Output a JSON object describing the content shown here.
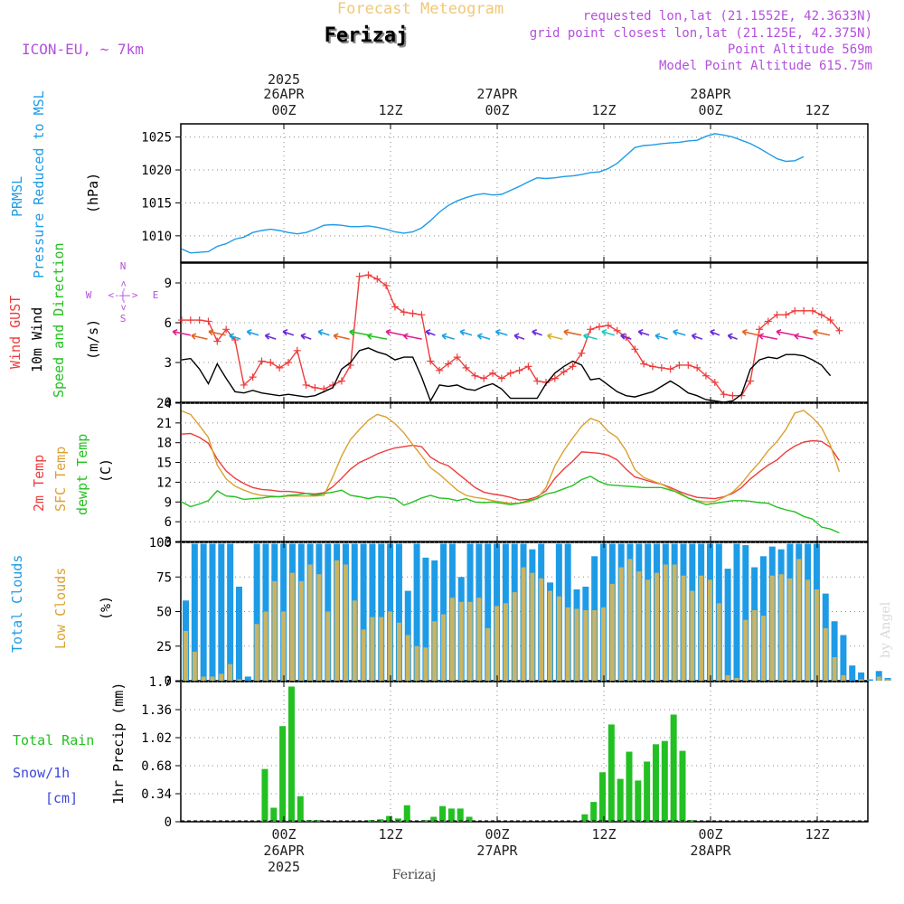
{
  "header": {
    "title": "Forecast Meteogram",
    "location": "Ferizaj",
    "model": "ICON-EU, ~ 7km",
    "requested": "requested lon,lat (21.1552E, 42.3633N)",
    "grid_point": "grid point closest lon,lat (21.125E, 42.375N)",
    "point_altitude": "Point Altitude 569m",
    "model_altitude": "Model Point Altitude 615.75m"
  },
  "time_axis": {
    "year": "2025",
    "hour_labels": [
      "00Z",
      "12Z",
      "00Z",
      "12Z",
      "00Z",
      "12Z"
    ],
    "date_labels": [
      "26APR",
      "27APR",
      "28APR"
    ]
  },
  "footer": {
    "location": "Ferizaj",
    "credit": "by Angel"
  },
  "colors": {
    "blue": "#1e9be6",
    "red": "#ee3c3c",
    "orange": "#dca030",
    "green": "#24c020",
    "purple": "#b450dc",
    "rain": "#22c022",
    "cloud_total": "#1e9be6",
    "cloud_low": "#c8b464"
  },
  "panel_labels": {
    "pressure": {
      "line1": "PRMSL",
      "line2": "Pressure Reduced to MSL",
      "unit": "(hPa)"
    },
    "wind": {
      "gust": "Wind GUST",
      "wind": "10m Wind",
      "speed_dir": "Speed and Direction",
      "unit": "(m/s)",
      "compass_n": "N",
      "compass_s": "S",
      "compass_w": "W",
      "compass_e": "E",
      "compass_ns": "<-|->",
      "compass_we": "<-|->"
    },
    "temp": {
      "t2m": "2m Temp",
      "sfc": "SFC Temp",
      "dewpt": "dewpt Temp",
      "unit": "(C)"
    },
    "clouds": {
      "total": "Total Clouds",
      "low": "Low Clouds",
      "unit": "(%)"
    },
    "precip": {
      "total_rain": "Total  Rain",
      "snow": "Snow/1h",
      "snow_unit": "[cm]",
      "axis": "1hr Precip (mm)"
    }
  },
  "chart_data": [
    {
      "type": "line",
      "title": "PRMSL Pressure Reduced to MSL",
      "ylabel": "hPa",
      "ylim": [
        1006,
        1027
      ],
      "yticks": [
        1010,
        1015,
        1020,
        1025
      ],
      "x_hours_from": "2025-04-25 14Z",
      "x_step_hours": 1,
      "series": [
        {
          "name": "PRMSL",
          "values": [
            1008.0,
            1007.4,
            1007.5,
            1007.6,
            1008.4,
            1008.8,
            1009.5,
            1009.8,
            1010.5,
            1010.8,
            1011.0,
            1010.8,
            1010.5,
            1010.3,
            1010.5,
            1011.0,
            1011.6,
            1011.7,
            1011.6,
            1011.4,
            1011.4,
            1011.5,
            1011.3,
            1011.0,
            1010.6,
            1010.4,
            1010.6,
            1011.2,
            1012.3,
            1013.6,
            1014.6,
            1015.3,
            1015.8,
            1016.2,
            1016.4,
            1016.2,
            1016.3,
            1016.9,
            1017.5,
            1018.2,
            1018.8,
            1018.7,
            1018.8,
            1019.0,
            1019.1,
            1019.3,
            1019.6,
            1019.7,
            1020.2,
            1021.0,
            1022.2,
            1023.4,
            1023.7,
            1023.8,
            1024.0,
            1024.1,
            1024.2,
            1024.4,
            1024.5,
            1025.1,
            1025.5,
            1025.3,
            1025.0,
            1024.5,
            1024.0,
            1023.3,
            1022.5,
            1021.7,
            1021.3,
            1021.4,
            1022.0
          ]
        }
      ]
    },
    {
      "type": "line",
      "title": "Wind GUST / 10m Wind Speed and Direction",
      "ylabel": "m/s",
      "ylim": [
        0,
        10.5
      ],
      "yticks": [
        0,
        3,
        6,
        9
      ],
      "x_hours_from": "2025-04-25 14Z",
      "x_step_hours": 1,
      "series": [
        {
          "name": "Wind GUST",
          "values": [
            6.2,
            6.2,
            6.2,
            6.1,
            4.6,
            5.5,
            4.7,
            1.3,
            1.9,
            3.1,
            3.0,
            2.6,
            3.0,
            3.9,
            1.3,
            1.1,
            1.0,
            1.3,
            1.6,
            2.8,
            9.5,
            9.6,
            9.3,
            8.8,
            7.2,
            6.8,
            6.7,
            6.6,
            3.1,
            2.4,
            2.9,
            3.4,
            2.6,
            2.0,
            1.8,
            2.2,
            1.8,
            2.2,
            2.4,
            2.7,
            1.6,
            1.5,
            1.8,
            2.3,
            2.7,
            3.7,
            5.5,
            5.7,
            5.8,
            5.4,
            4.9,
            4.0,
            2.9,
            2.7,
            2.6,
            2.5,
            2.8,
            2.8,
            2.6,
            2.0,
            1.5,
            0.6,
            0.5,
            0.5,
            1.6,
            5.5,
            6.1,
            6.6,
            6.6,
            6.9,
            6.9,
            6.9,
            6.6,
            6.2,
            5.4
          ]
        },
        {
          "name": "10m Wind",
          "values": [
            3.2,
            3.3,
            2.5,
            1.4,
            2.9,
            1.8,
            0.8,
            0.7,
            0.9,
            0.7,
            0.6,
            0.5,
            0.6,
            0.5,
            0.4,
            0.5,
            0.8,
            1.1,
            2.5,
            3.0,
            3.9,
            4.1,
            3.8,
            3.6,
            3.2,
            3.4,
            3.4,
            1.9,
            0.1,
            1.3,
            1.2,
            1.3,
            1.0,
            0.9,
            1.2,
            1.4,
            1.0,
            0.3,
            0.3,
            0.3,
            0.3,
            1.4,
            2.2,
            2.7,
            3.1,
            2.8,
            1.7,
            1.8,
            1.3,
            0.8,
            0.5,
            0.4,
            0.6,
            0.8,
            1.2,
            1.6,
            1.2,
            0.7,
            0.5,
            0.2,
            0.1,
            0.0,
            0.1,
            0.6,
            2.5,
            3.2,
            3.4,
            3.3,
            3.6,
            3.6,
            3.5,
            3.2,
            2.8,
            2.0
          ]
        }
      ]
    },
    {
      "type": "line",
      "title": "2m Temp / SFC Temp / dewpt Temp",
      "ylabel": "C",
      "ylim": [
        3,
        24
      ],
      "yticks": [
        3,
        6,
        9,
        12,
        15,
        18,
        21,
        24
      ],
      "x_hours_from": "2025-04-25 14Z",
      "x_step_hours": 1,
      "series": [
        {
          "name": "2m Temp",
          "values": [
            19.3,
            19.4,
            18.8,
            17.9,
            15.5,
            13.7,
            12.6,
            11.8,
            11.2,
            10.9,
            10.8,
            10.6,
            10.6,
            10.5,
            10.3,
            10.2,
            10.4,
            11.3,
            12.6,
            14.0,
            15.0,
            15.6,
            16.3,
            16.8,
            17.2,
            17.4,
            17.6,
            17.4,
            15.8,
            15.0,
            14.5,
            13.4,
            12.3,
            11.2,
            10.5,
            10.2,
            10.0,
            9.7,
            9.3,
            9.4,
            9.8,
            10.7,
            12.6,
            14.0,
            15.2,
            16.6,
            16.5,
            16.4,
            16.1,
            15.4,
            14.0,
            12.8,
            12.4,
            12.0,
            11.7,
            11.2,
            10.6,
            10.1,
            9.7,
            9.6,
            9.5,
            9.8,
            10.3,
            11.2,
            12.5,
            13.6,
            14.6,
            15.4,
            16.6,
            17.5,
            18.1,
            18.3,
            18.2,
            17.3,
            15.3
          ]
        },
        {
          "name": "SFC Temp",
          "values": [
            22.8,
            22.3,
            20.6,
            18.8,
            14.6,
            12.5,
            11.4,
            10.8,
            10.3,
            10.0,
            9.9,
            9.8,
            9.9,
            9.9,
            9.9,
            9.9,
            10.0,
            12.8,
            16.0,
            18.5,
            20.0,
            21.4,
            22.3,
            21.9,
            20.9,
            19.5,
            17.7,
            16.0,
            14.2,
            13.2,
            12.0,
            10.8,
            10.0,
            9.7,
            9.5,
            9.2,
            9.0,
            8.8,
            8.8,
            9.0,
            9.5,
            11.2,
            14.5,
            16.8,
            18.7,
            20.5,
            21.7,
            21.2,
            19.7,
            18.8,
            16.8,
            13.9,
            12.7,
            12.2,
            11.7,
            11.0,
            10.2,
            9.6,
            9.2,
            9.0,
            9.1,
            9.7,
            10.5,
            11.8,
            13.5,
            15.0,
            16.8,
            18.2,
            20.0,
            22.5,
            22.9,
            21.8,
            20.3,
            17.6,
            13.6
          ]
        },
        {
          "name": "dewpt Temp",
          "values": [
            9.0,
            8.3,
            8.7,
            9.2,
            10.7,
            9.9,
            9.8,
            9.4,
            9.5,
            9.6,
            9.8,
            9.8,
            10.0,
            10.1,
            10.3,
            10.0,
            10.3,
            10.5,
            10.8,
            10.0,
            9.8,
            9.5,
            9.8,
            9.7,
            9.5,
            8.5,
            9.0,
            9.6,
            10.0,
            9.6,
            9.5,
            9.2,
            9.5,
            9.0,
            8.9,
            9.0,
            8.8,
            8.6,
            8.8,
            9.2,
            9.5,
            10.2,
            10.5,
            11.0,
            11.5,
            12.4,
            12.9,
            12.1,
            11.6,
            11.5,
            11.4,
            11.3,
            11.2,
            11.2,
            11.2,
            10.8,
            10.4,
            9.6,
            9.1,
            8.6,
            8.8,
            9.0,
            9.2,
            9.2,
            9.1,
            8.9,
            8.8,
            8.2,
            7.8,
            7.5,
            6.8,
            6.4,
            5.2,
            4.9,
            4.3
          ]
        }
      ]
    },
    {
      "type": "bar",
      "title": "Total Clouds / Low Clouds",
      "ylabel": "%",
      "ylim": [
        0,
        100
      ],
      "yticks": [
        0,
        25,
        50,
        75,
        100
      ],
      "x_hours_from": "2025-04-25 14Z",
      "x_step_hours": 1,
      "series": [
        {
          "name": "Total Clouds",
          "values": [
            58,
            99,
            99,
            99,
            99,
            99,
            68,
            3,
            99,
            99,
            99,
            99,
            99,
            99,
            99,
            99,
            99,
            99,
            99,
            99,
            99,
            99,
            99,
            99,
            99,
            65,
            99,
            89,
            87,
            99,
            99,
            75,
            99,
            99,
            99,
            99,
            99,
            99,
            99,
            95,
            99,
            71,
            99,
            99,
            66,
            68,
            90,
            99,
            99,
            99,
            99,
            99,
            99,
            99,
            99,
            99,
            99,
            99,
            99,
            99,
            99,
            81,
            99,
            98,
            82,
            90,
            97,
            95,
            99,
            99,
            99,
            99,
            63,
            43,
            33,
            11,
            6,
            1,
            7,
            2
          ]
        },
        {
          "name": "Low Clouds",
          "values": [
            36,
            21,
            3,
            3,
            5,
            12,
            1,
            0,
            41,
            50,
            72,
            50,
            78,
            72,
            84,
            77,
            50,
            87,
            84,
            58,
            37,
            46,
            46,
            50,
            42,
            33,
            25,
            24,
            43,
            48,
            60,
            57,
            57,
            60,
            38,
            54,
            56,
            64,
            82,
            78,
            74,
            65,
            61,
            53,
            52,
            51,
            51,
            53,
            70,
            82,
            88,
            79,
            73,
            78,
            84,
            84,
            76,
            65,
            76,
            73,
            56,
            4,
            2,
            44,
            51,
            47,
            76,
            77,
            74,
            88,
            73,
            66,
            38,
            17,
            4,
            0,
            1,
            0,
            3,
            1
          ]
        }
      ]
    },
    {
      "type": "bar",
      "title": "1hr Precip (mm)",
      "ylabel": "1hr Precip (mm)",
      "ylim": [
        0,
        1.7
      ],
      "yticks": [
        0,
        0.34,
        0.68,
        1.02,
        1.36,
        1.7
      ],
      "x_hours_from": "2025-04-25 14Z",
      "x_step_hours": 1,
      "series": [
        {
          "name": "Total Rain",
          "values": [
            0,
            0,
            0,
            0,
            0,
            0,
            0,
            0,
            0,
            0.64,
            0.17,
            1.16,
            1.64,
            0.31,
            0.02,
            0.02,
            0,
            0,
            0,
            0,
            0,
            0.02,
            0.03,
            0.07,
            0.04,
            0.2,
            0,
            0.02,
            0.06,
            0.19,
            0.16,
            0.16,
            0.06,
            0,
            0,
            0,
            0,
            0,
            0,
            0,
            0,
            0,
            0,
            0,
            0,
            0.09,
            0.24,
            0.6,
            1.18,
            0.52,
            0.85,
            0.5,
            0.73,
            0.94,
            0.98,
            1.3,
            0.86,
            0.02,
            0,
            0,
            0,
            0,
            0,
            0,
            0,
            0,
            0,
            0,
            0,
            0,
            0,
            0,
            0,
            0,
            0,
            0,
            0,
            0
          ]
        }
      ]
    }
  ]
}
